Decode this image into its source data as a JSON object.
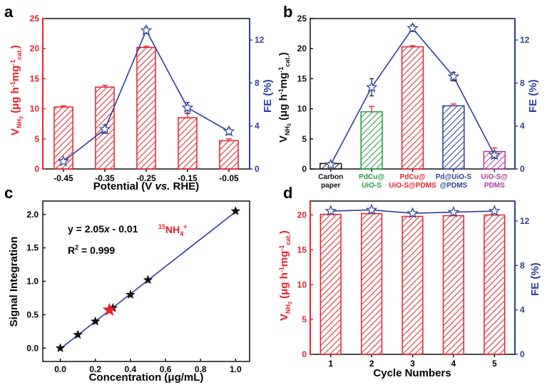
{
  "colors": {
    "red": "#e8202a",
    "blue": "#2b3f9a",
    "green": "#1f9a3c",
    "purple": "#b0389c",
    "black": "#111111"
  },
  "chart_data": [
    {
      "id": "a",
      "type": "bar",
      "panel_label": "a",
      "categories": [
        "-0.45",
        "-0.35",
        "-0.25",
        "-0.15",
        "-0.05"
      ],
      "xlabel": "Potential (V vs. RHE)",
      "ylabel": "VNH3 (μg h-1mg-1cat.)",
      "ylabel_right": "FE (%)",
      "ylim": [
        0,
        25
      ],
      "yticks": [
        "0",
        "5",
        "10",
        "15",
        "20",
        "25"
      ],
      "ylim_right": [
        0,
        14
      ],
      "yticks_right": [
        "0",
        "4",
        "8",
        "12"
      ],
      "series": [
        {
          "name": "VNH3",
          "axis": "left",
          "values": [
            10.3,
            13.6,
            20.2,
            8.5,
            4.7
          ],
          "errors": [
            0.2,
            0.3,
            0.2,
            0.7,
            0.3
          ]
        },
        {
          "name": "FE",
          "axis": "right",
          "values": [
            0.7,
            3.7,
            12.9,
            5.7,
            3.5
          ],
          "errors": [
            0.2,
            0.4,
            0.3,
            0.5,
            0.3
          ]
        }
      ]
    },
    {
      "id": "b",
      "type": "bar",
      "panel_label": "b",
      "categories": [
        {
          "line1": "Carbon",
          "line2": "paper",
          "color": "#111111"
        },
        {
          "line1": "PdCu@",
          "line2": "UiO-S",
          "color": "#1f9a3c"
        },
        {
          "line1": "PdCu@",
          "line2": "UiO-S@PDMS",
          "color": "#e8202a"
        },
        {
          "line1": "Pd@UiO-S",
          "line2": "@PDMS",
          "color": "#2b3f9a"
        },
        {
          "line1": "UiO-S@",
          "line2": "PDMS",
          "color": "#b0389c"
        }
      ],
      "ylabel": "VNH3 (μg h-1mg-1cat.)",
      "ylabel_right": "FE (%)",
      "ylim": [
        0,
        25
      ],
      "yticks": [
        "0",
        "5",
        "10",
        "15",
        "20",
        "25"
      ],
      "ylim_right": [
        0,
        14
      ],
      "yticks_right": [
        "0",
        "4",
        "8",
        "12"
      ],
      "series": [
        {
          "name": "VNH3",
          "axis": "left",
          "values": [
            0.9,
            9.5,
            20.3,
            10.5,
            2.9
          ],
          "errors": [
            0.2,
            0.9,
            0.2,
            0.3,
            0.6
          ]
        },
        {
          "name": "FE",
          "axis": "right",
          "values": [
            0.4,
            7.6,
            13.1,
            8.6,
            1.3
          ],
          "errors": [
            0.1,
            0.8,
            0.3,
            0.4,
            0.3
          ]
        }
      ]
    },
    {
      "id": "c",
      "type": "scatter",
      "panel_label": "c",
      "xlabel": "Concentration (μg/mL)",
      "ylabel": "Signal Integration",
      "xlim": [
        -0.1,
        1.08
      ],
      "ylim": [
        -0.2,
        2.2
      ],
      "xticks": [
        "0.0",
        "0.2",
        "0.4",
        "0.6",
        "0.8",
        "1.0"
      ],
      "yticks": [
        "0.0",
        "0.5",
        "1.0",
        "1.5",
        "2.0"
      ],
      "x": [
        0,
        0.1,
        0.2,
        0.3,
        0.4,
        0.5,
        1.0
      ],
      "y": [
        0.0,
        0.2,
        0.4,
        0.6,
        0.8,
        1.02,
        2.05
      ],
      "sample": {
        "x": 0.28,
        "y": 0.57
      },
      "fit": {
        "slope": 2.05,
        "intercept": -0.01
      },
      "equation": "y = 2.05x - 0.01",
      "r2": "R2 = 0.999",
      "annotation": "15NH4+"
    },
    {
      "id": "d",
      "type": "bar",
      "panel_label": "d",
      "categories": [
        "1",
        "2",
        "3",
        "4",
        "5"
      ],
      "xlabel": "Cycle Numbers",
      "ylabel": "VNH3 (μg h-1mg-1cat.)",
      "ylabel_right": "FE (%)",
      "ylim": [
        0,
        22
      ],
      "yticks": [
        "0",
        "5",
        "10",
        "15",
        "20"
      ],
      "ylim_right": [
        0,
        13.8
      ],
      "yticks_right": [
        "0",
        "4",
        "8",
        "12"
      ],
      "series": [
        {
          "name": "VNH3",
          "axis": "left",
          "values": [
            20.1,
            20.2,
            19.8,
            19.9,
            20.0
          ]
        },
        {
          "name": "FE",
          "axis": "right",
          "values": [
            12.9,
            13.0,
            12.7,
            12.8,
            12.9
          ]
        }
      ]
    }
  ]
}
